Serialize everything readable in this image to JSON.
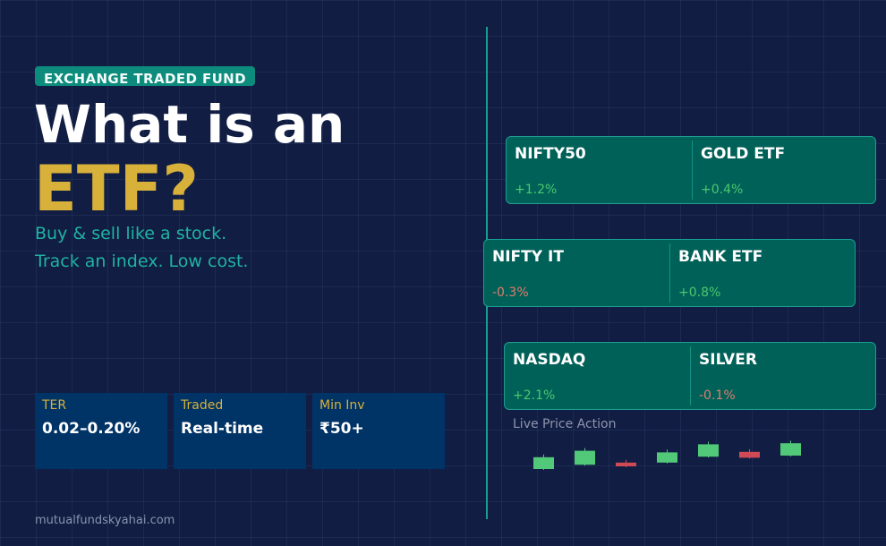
{
  "header": {
    "badge": "EXCHANGE TRADED FUND",
    "title_line1": "What is an",
    "title_line2": "ETF?",
    "subtitle_lines": [
      "Buy & sell like a stock.",
      "Track an index. Low cost."
    ]
  },
  "stats": [
    {
      "label": "TER",
      "value": "0.02–0.20%"
    },
    {
      "label": "Traded",
      "value": "Real-time"
    },
    {
      "label": "Min Inv",
      "value": "₹50+"
    }
  ],
  "footer": "mutualfundskyahai.com",
  "tickers": [
    {
      "left": {
        "name": "NIFTY50",
        "change": "+1.2%"
      },
      "right": {
        "name": "GOLD ETF",
        "change": "+0.4%"
      }
    },
    {
      "left": {
        "name": "NIFTY IT",
        "change": "-0.3%"
      },
      "right": {
        "name": "BANK ETF",
        "change": "+0.8%"
      }
    },
    {
      "left": {
        "name": "NASDAQ",
        "change": "+2.1%"
      },
      "right": {
        "name": "SILVER",
        "change": "-0.1%"
      }
    }
  ],
  "live": {
    "label": "Live Price Action",
    "candles": [
      {
        "dir": "up",
        "open": 40,
        "close": 62
      },
      {
        "dir": "up",
        "open": 48,
        "close": 74
      },
      {
        "dir": "down",
        "open": 52,
        "close": 45
      },
      {
        "dir": "up",
        "open": 52,
        "close": 71
      },
      {
        "dir": "up",
        "open": 63,
        "close": 86
      },
      {
        "dir": "down",
        "open": 72,
        "close": 61
      },
      {
        "dir": "up",
        "open": 65,
        "close": 88
      }
    ]
  },
  "colors": {
    "background": "#111d42",
    "accent_teal": "#1a9e92",
    "gold": "#d8b13b",
    "positive": "#4cc76e",
    "negative": "#e07c6e",
    "candle_up": "#52c979",
    "candle_down": "#cf4a55"
  }
}
